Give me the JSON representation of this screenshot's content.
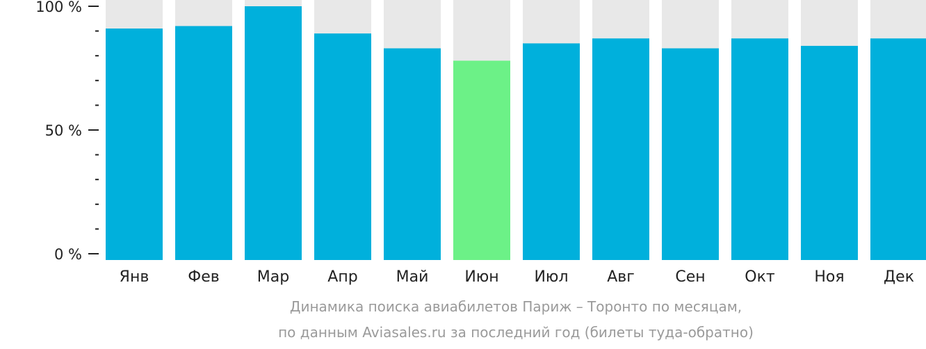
{
  "chart_data": {
    "type": "bar",
    "categories": [
      "Янв",
      "Фев",
      "Мар",
      "Апр",
      "Май",
      "Июн",
      "Июл",
      "Авг",
      "Сен",
      "Окт",
      "Ноя",
      "Дек"
    ],
    "values": [
      91,
      92,
      100,
      89,
      83,
      78,
      85,
      87,
      83,
      87,
      84,
      87
    ],
    "highlight_index": 5,
    "ylim": [
      0,
      104
    ],
    "yticks": [
      {
        "value": 0,
        "label": "0 %"
      },
      {
        "value": 50,
        "label": "50 %"
      },
      {
        "value": 100,
        "label": "100 %"
      }
    ],
    "minor_tick_step": 10,
    "colors": {
      "bar": "#00b0dc",
      "highlight": "#6cf187",
      "track": "#e8e8e8",
      "axis": "#222222",
      "caption": "#9a9a9a"
    },
    "caption_line1": "Динамика поиска авиабилетов Париж – Торонто по месяцам,",
    "caption_line2": "по данным Aviasales.ru за последний год (билеты туда-обратно)"
  }
}
